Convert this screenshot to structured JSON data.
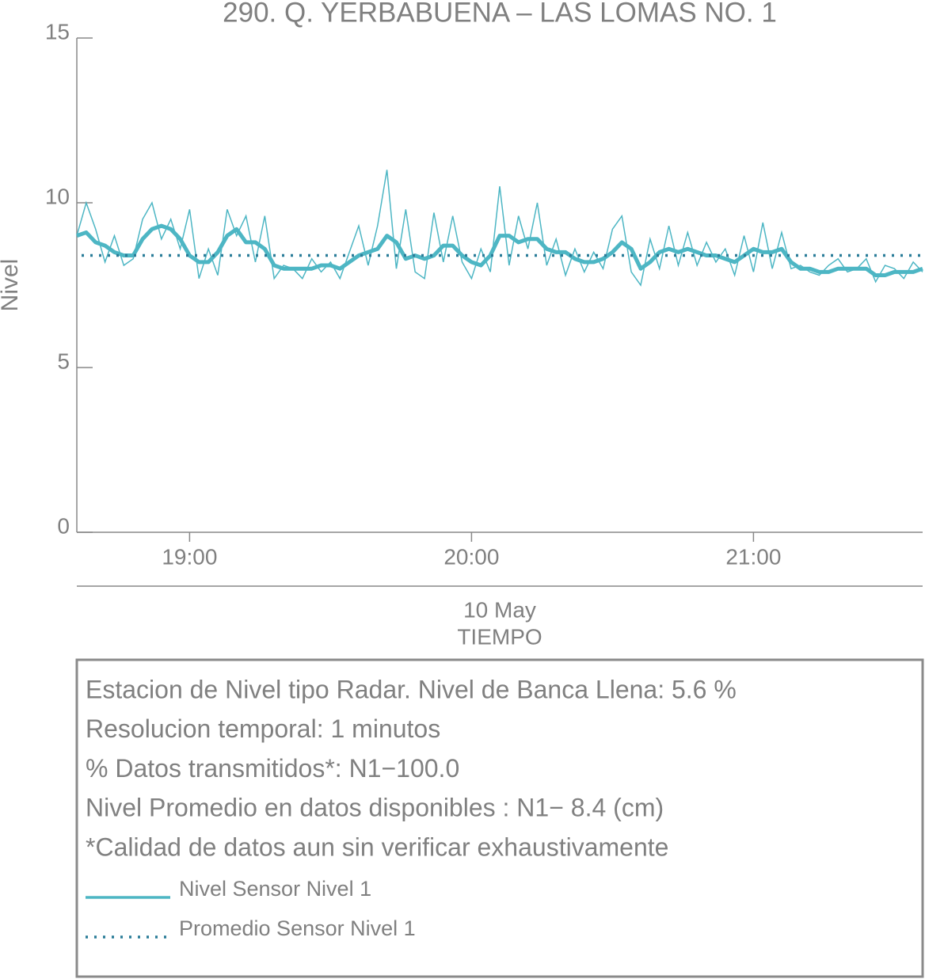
{
  "chart_data": {
    "type": "line",
    "title": "290. Q. YERBABUENA – LAS LOMAS NO. 1",
    "ylabel": "Nivel",
    "xlabel": "TIEMPO",
    "date_label": "10 May",
    "x": [
      "18:36",
      "18:38",
      "18:40",
      "18:42",
      "18:44",
      "18:46",
      "18:48",
      "18:50",
      "18:52",
      "18:54",
      "18:56",
      "18:58",
      "19:00",
      "19:02",
      "19:04",
      "19:06",
      "19:08",
      "19:10",
      "19:12",
      "19:14",
      "19:16",
      "19:18",
      "19:20",
      "19:22",
      "19:24",
      "19:26",
      "19:28",
      "19:30",
      "19:32",
      "19:34",
      "19:36",
      "19:38",
      "19:40",
      "19:42",
      "19:44",
      "19:46",
      "19:48",
      "19:50",
      "19:52",
      "19:54",
      "19:56",
      "19:58",
      "20:00",
      "20:02",
      "20:04",
      "20:06",
      "20:08",
      "20:10",
      "20:12",
      "20:14",
      "20:16",
      "20:18",
      "20:20",
      "20:22",
      "20:24",
      "20:26",
      "20:28",
      "20:30",
      "20:32",
      "20:34",
      "20:36",
      "20:38",
      "20:40",
      "20:42",
      "20:44",
      "20:46",
      "20:48",
      "20:50",
      "20:52",
      "20:54",
      "20:56",
      "20:58",
      "21:00",
      "21:02",
      "21:04",
      "21:06",
      "21:08",
      "21:10",
      "21:12",
      "21:14",
      "21:16",
      "21:18",
      "21:20",
      "21:22",
      "21:24",
      "21:26",
      "21:28",
      "21:30",
      "21:32",
      "21:34",
      "21:36"
    ],
    "series": [
      {
        "name": "Nivel Sensor Nivel 1",
        "color": "#4db6c4",
        "values": [
          9.0,
          10.0,
          9.2,
          8.2,
          9.0,
          8.1,
          8.3,
          9.5,
          10.0,
          8.9,
          9.5,
          8.6,
          9.8,
          7.7,
          8.6,
          7.8,
          9.8,
          9.0,
          9.6,
          8.2,
          9.6,
          7.7,
          8.1,
          8.0,
          7.7,
          8.3,
          7.9,
          8.2,
          7.7,
          8.5,
          9.3,
          8.1,
          9.3,
          11.0,
          8.0,
          9.8,
          7.9,
          7.7,
          9.7,
          8.2,
          9.6,
          8.2,
          7.7,
          8.6,
          7.9,
          10.5,
          8.1,
          9.6,
          8.6,
          10.0,
          8.1,
          8.9,
          7.8,
          8.6,
          7.9,
          8.5,
          8.0,
          9.2,
          9.6,
          7.9,
          7.5,
          8.9,
          8.0,
          9.3,
          8.1,
          9.1,
          8.1,
          8.8,
          8.2,
          8.6,
          7.8,
          9.0,
          7.9,
          9.4,
          8.0,
          9.1,
          8.0,
          8.1,
          7.9,
          7.8,
          8.1,
          8.3,
          7.9,
          8.0,
          8.3,
          7.6,
          8.1,
          8.0,
          7.7,
          8.2,
          7.9
        ],
        "trend": [
          9.0,
          9.1,
          8.8,
          8.7,
          8.5,
          8.4,
          8.4,
          8.9,
          9.2,
          9.3,
          9.2,
          8.9,
          8.4,
          8.2,
          8.2,
          8.5,
          9.0,
          9.2,
          8.8,
          8.8,
          8.6,
          8.1,
          8.0,
          8.0,
          8.0,
          8.0,
          8.1,
          8.1,
          8.0,
          8.2,
          8.4,
          8.5,
          8.6,
          9.0,
          8.8,
          8.3,
          8.4,
          8.3,
          8.4,
          8.7,
          8.7,
          8.4,
          8.2,
          8.1,
          8.4,
          9.0,
          9.0,
          8.8,
          8.9,
          8.9,
          8.6,
          8.5,
          8.5,
          8.3,
          8.2,
          8.2,
          8.3,
          8.5,
          8.8,
          8.6,
          8.0,
          8.2,
          8.5,
          8.6,
          8.5,
          8.6,
          8.5,
          8.4,
          8.4,
          8.3,
          8.2,
          8.4,
          8.6,
          8.5,
          8.5,
          8.6,
          8.2,
          8.0,
          8.0,
          7.9,
          7.9,
          8.0,
          8.0,
          8.0,
          8.0,
          7.8,
          7.8,
          7.9,
          7.9,
          7.9,
          8.0
        ]
      }
    ],
    "mean_line": {
      "name": "Promedio Sensor Nivel 1",
      "color": "#2b7d99",
      "value": 8.4
    },
    "xlim": [
      "18:36",
      "21:36"
    ],
    "xticks": [
      "19:00",
      "20:00",
      "21:00"
    ],
    "ylim": [
      0,
      15
    ],
    "yticks": [
      0,
      5,
      10,
      15
    ],
    "notes": [
      "Estacion de Nivel tipo Radar. Nivel de Banca Llena:  5.6 %",
      "Resolucion temporal: 1 minutos",
      "% Datos transmitidos*: N1−100.0",
      "Nivel Promedio en datos disponibles : N1−  8.4 (cm)",
      "*Calidad de datos aun sin verificar exhaustivamente"
    ]
  }
}
